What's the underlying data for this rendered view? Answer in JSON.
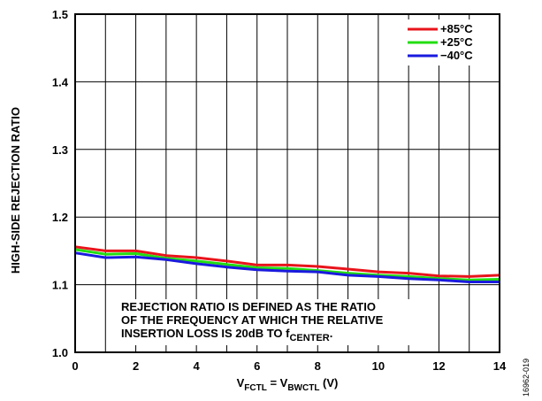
{
  "figure_id": "16962-019",
  "chart_data": {
    "type": "line",
    "title": "",
    "xlabel": {
      "main": "V",
      "sub1": "FCTL",
      "mid": " = V",
      "sub2": "BWCTL",
      "end": " (V)"
    },
    "ylabel": "HIGH-SIDE REJECTION RATIO",
    "xlim": [
      0,
      14
    ],
    "ylim": [
      1.0,
      1.5
    ],
    "xticks": [
      0,
      2,
      4,
      6,
      8,
      10,
      12,
      14
    ],
    "xtick_labels": [
      "0",
      "2",
      "4",
      "6",
      "8",
      "10",
      "12",
      "14"
    ],
    "yticks": [
      1.0,
      1.1,
      1.2,
      1.3,
      1.4,
      1.5
    ],
    "ytick_labels": [
      "1.0",
      "1.1",
      "1.2",
      "1.3",
      "1.4",
      "1.5"
    ],
    "grid": true,
    "legend_position": "top-right",
    "x": [
      0,
      1,
      2,
      3,
      4,
      5,
      6,
      7,
      8,
      9,
      10,
      11,
      12,
      13,
      14
    ],
    "series": [
      {
        "name": "+85°C",
        "color": "#e8141b",
        "values": [
          1.156,
          1.15,
          1.15,
          1.143,
          1.14,
          1.135,
          1.129,
          1.129,
          1.127,
          1.123,
          1.119,
          1.117,
          1.113,
          1.112,
          1.114
        ]
      },
      {
        "name": "+25°C",
        "color": "#22dd11",
        "values": [
          1.152,
          1.145,
          1.146,
          1.139,
          1.135,
          1.13,
          1.125,
          1.124,
          1.121,
          1.117,
          1.114,
          1.112,
          1.109,
          1.107,
          1.108
        ]
      },
      {
        "name": "−40°C",
        "color": "#1a1adf",
        "values": [
          1.147,
          1.14,
          1.141,
          1.137,
          1.131,
          1.126,
          1.122,
          1.12,
          1.119,
          1.114,
          1.112,
          1.109,
          1.107,
          1.104,
          1.104
        ]
      }
    ],
    "annotation": {
      "line1": "REJECTION RATIO IS DEFINED AS THE RATIO",
      "line2": "OF THE FREQUENCY AT WHICH THE RELATIVE",
      "line3_pre": "INSERTION LOSS IS 20dB TO f",
      "line3_sub": "CENTER",
      "line3_post": "."
    }
  }
}
